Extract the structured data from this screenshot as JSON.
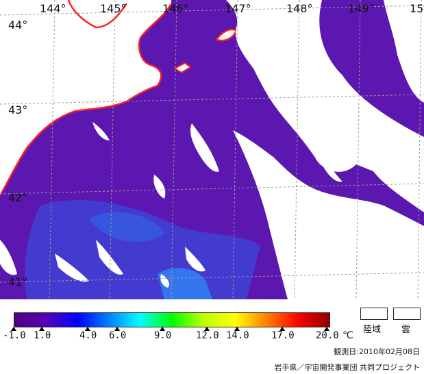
{
  "map": {
    "longitude_labels": [
      "144°",
      "145°",
      "146°",
      "147°",
      "148°",
      "149°",
      "15"
    ],
    "latitude_labels": [
      "44°",
      "43°",
      "42°",
      "41°"
    ],
    "colors": {
      "sea_low": "#5a10b0",
      "sea_mid": "#3a2ad0",
      "sea_warm": "#2f6cf0",
      "cloud": "#ffffff",
      "coastline": "#ff2020",
      "grid": "#9a9a9a"
    }
  },
  "legend": {
    "colorbar_stops": [
      "#4b0082",
      "#5a00b4",
      "#0000ff",
      "#0080ff",
      "#00ffff",
      "#00ff00",
      "#c0ff00",
      "#ffff00",
      "#ff8000",
      "#ff0000",
      "#8b0000"
    ],
    "ticks": [
      "-1.0",
      "1.0",
      "4.0",
      "6.0",
      "9.0",
      "12.0",
      "14.0",
      "17.0",
      "20.0"
    ],
    "unit": "℃",
    "land_label": "陸域",
    "cloud_label": "雲",
    "observation_date": "観測日:2010年02月08日",
    "credit": "岩手県／宇宙開発事業団 共同プロジェクト"
  }
}
